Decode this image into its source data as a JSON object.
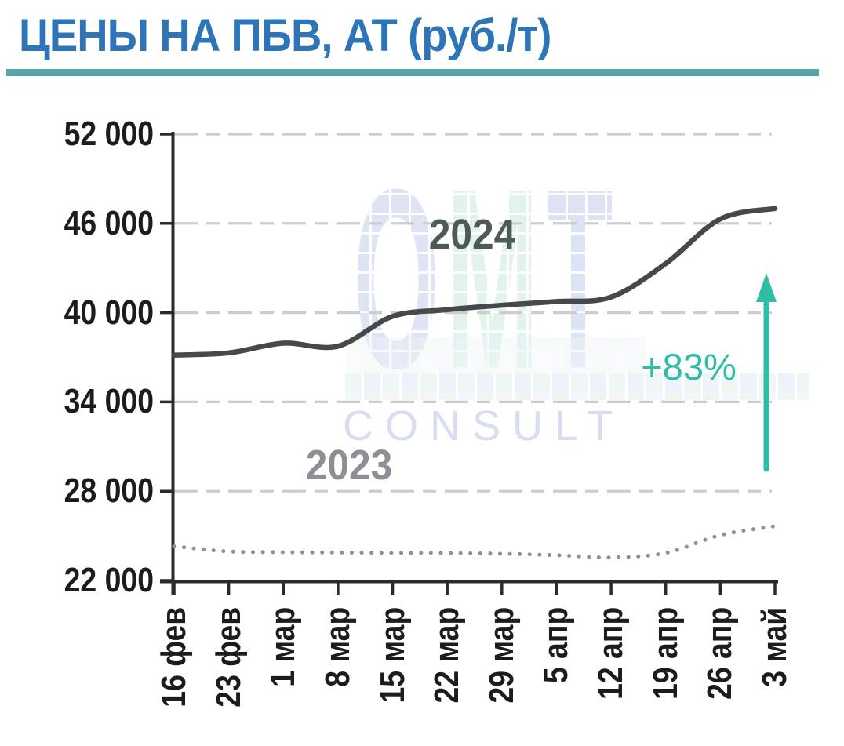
{
  "header": {
    "title": "ЦЕНЫ НА ПБВ, АТ (руб./т)",
    "underline_color": "#53a6a3",
    "title_color": "#2e75b8"
  },
  "watermark": {
    "letters": [
      "O",
      "M",
      "T"
    ],
    "subtitle": "CONSULT"
  },
  "annotation": {
    "label": "+83%",
    "color": "#2fbda6"
  },
  "chart_data": {
    "type": "line",
    "title": "ЦЕНЫ НА ПБВ, АТ (руб./т)",
    "categories": [
      "16 фев",
      "23 фев",
      "1 мар",
      "8 мар",
      "15 мар",
      "22 мар",
      "29 мар",
      "5 апр",
      "12 апр",
      "19 апр",
      "26 апр",
      "3 май"
    ],
    "series": [
      {
        "name": "2024",
        "line_style": "solid",
        "color": "#46484b",
        "values": [
          37150,
          37300,
          37950,
          37750,
          39750,
          40200,
          40500,
          40750,
          41050,
          43300,
          46300,
          47000
        ]
      },
      {
        "name": "2023",
        "line_style": "dotted",
        "color": "#8f9294",
        "values": [
          24300,
          23950,
          23900,
          23880,
          23850,
          23850,
          23800,
          23700,
          23550,
          23850,
          25050,
          25650
        ]
      }
    ],
    "ylim": [
      22000,
      52000
    ],
    "yticks": [
      52000,
      46000,
      40000,
      34000,
      28000,
      22000
    ],
    "ytick_labels": [
      "52 000",
      "46 000",
      "40 000",
      "34 000",
      "28 000",
      "22 000"
    ],
    "xlabel": "",
    "ylabel": "",
    "grid": "horizontal-dashed",
    "gridline_color": "#cccccc",
    "axis_color": "#2b2b2b",
    "legend_position": "inline-labels",
    "annotations": [
      {
        "text": "+83%",
        "type": "growth-arrow",
        "color": "#2fbda6"
      }
    ]
  }
}
